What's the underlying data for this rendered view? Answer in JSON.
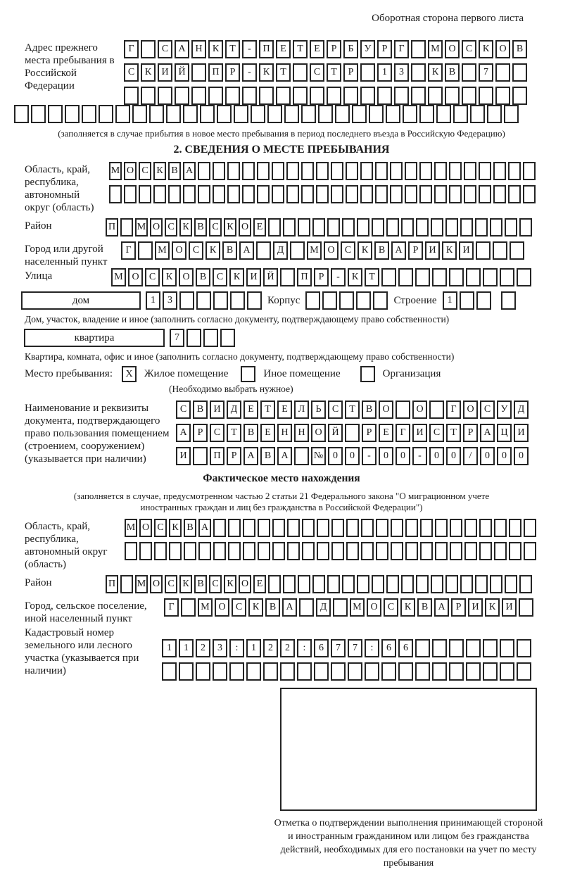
{
  "header": {
    "note": "Оборотная сторона первого листа"
  },
  "prev_address": {
    "label": "Адрес прежнего места пребывания в Российской Федерации",
    "row1": {
      "text": "Г САНКТ-ПЕТЕРБУРГ МОСКОВ",
      "count": 24
    },
    "row2": {
      "text": "СКИЙ ПР-КТ СТР 13 КВ 7",
      "count": 24
    },
    "row3": {
      "text": "",
      "count": 24
    },
    "row4": {
      "text": "",
      "count": 30
    },
    "note": "(заполняется в случае прибытия в новое место пребывания в период последнего въезда в Российскую Федерацию)"
  },
  "section2": {
    "title": "2. СВЕДЕНИЯ О МЕСТЕ ПРЕБЫВАНИЯ",
    "region": {
      "label": "Область, край, республика, автономный округ (область)",
      "row1": {
        "text": "МОСКВА",
        "count": 29
      },
      "row2": {
        "text": "",
        "count": 29
      }
    },
    "district": {
      "label": "Район",
      "row1": {
        "text": "П МОСКВСКОЕ",
        "count": 29
      }
    },
    "city": {
      "label": "Город или другой населенный пункт",
      "row1": {
        "text": "Г МОСКВА Д МОСКВАРИКИ",
        "count": 24
      }
    },
    "street": {
      "label": "Улица",
      "row1": {
        "text": "МОСКОВСКИЙ ПР-КТ",
        "count": 25
      }
    },
    "house": {
      "box_label": "дом",
      "cells": {
        "text": "13",
        "count": 7
      },
      "korpus_label": "Корпус",
      "korpus_cells": {
        "text": "",
        "count": 5
      },
      "stroenie_label": "Строение",
      "stroenie_cells": {
        "text": "1",
        "count": 3
      },
      "stroenie_extra": {
        "text": "",
        "count": 1
      },
      "note": "Дом, участок, владение и иное (заполнить согласно документу, подтверждающему право собственности)"
    },
    "apartment": {
      "box_label": "квартира",
      "cells": {
        "text": "7",
        "count": 4
      },
      "note": "Квартира, комната, офис и иное (заполнить согласно документу, подтверждающему право собственности)"
    },
    "stay_type": {
      "label": "Место пребывания:",
      "options": [
        {
          "label": "Жилое помещение",
          "checked": "X"
        },
        {
          "label": "Иное помещение",
          "checked": ""
        },
        {
          "label": "Организация",
          "checked": ""
        }
      ],
      "note": "(Необходимо выбрать нужное)"
    },
    "document": {
      "label": "Наименование и реквизиты документа, подтверждающего право пользования помещением (строением, сооружением) (указывается при наличии)",
      "row1": {
        "text": "СВИДЕТЕЛЬСТВО О ГОСУД",
        "count": 21
      },
      "row2": {
        "text": "АРСТВЕННОЙ РЕГИСТРАЦИ",
        "count": 21
      },
      "row3": {
        "text": "И ПРАВА №00-00-00/000",
        "count": 21
      }
    }
  },
  "actual_location": {
    "title": "Фактическое место нахождения",
    "note": "(заполняется в случае, предусмотренном частью 2 статьи 21 Федерального закона \"О миграционном учете иностранных граждан и лиц без гражданства в Российской Федерации\")",
    "region": {
      "label": "Область, край, республика, автономный округ (область)",
      "row1": {
        "text": "МОСКВА",
        "count": 28
      },
      "row2": {
        "text": "",
        "count": 28
      }
    },
    "district": {
      "label": "Район",
      "row1": {
        "text": "П МОСКВСКОЕ",
        "count": 29
      }
    },
    "city": {
      "label": "Город, сельское поселение, иной населенный пункт",
      "row1": {
        "text": "Г МОСКВА Д МОСКВАРИКИ",
        "count": 22
      }
    },
    "cadastral": {
      "label": "Кадастровый номер земельного или лесного участка (указывается при наличии)",
      "row1": {
        "text": "1123:122:677:66",
        "count": 22
      },
      "row2": {
        "text": "",
        "count": 22
      }
    }
  },
  "confirmation": {
    "caption": "Отметка о подтверждении выполнения принимающей стороной и иностранным гражданином или лицом без гражданства действий, необходимых для его постановки на учет по месту пребывания"
  }
}
